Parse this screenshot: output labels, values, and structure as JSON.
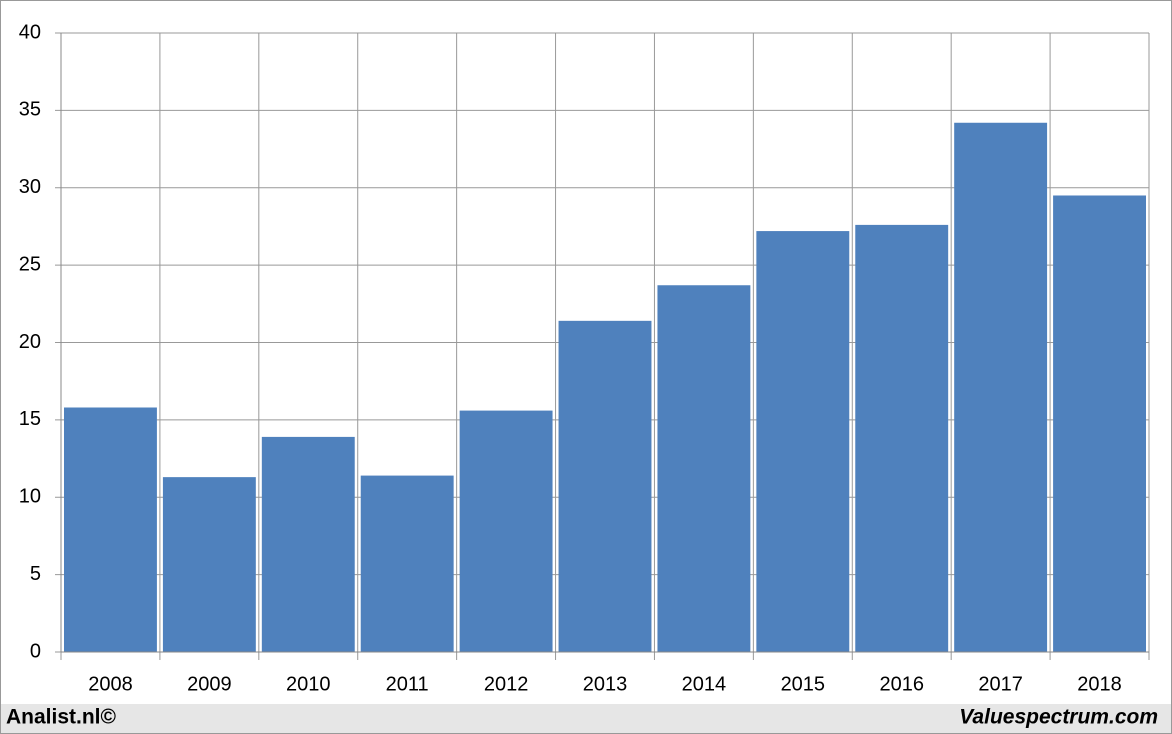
{
  "chart_data": {
    "type": "bar",
    "categories": [
      "2008",
      "2009",
      "2010",
      "2011",
      "2012",
      "2013",
      "2014",
      "2015",
      "2016",
      "2017",
      "2018"
    ],
    "values": [
      15.8,
      11.3,
      13.9,
      11.4,
      15.6,
      21.4,
      23.7,
      27.2,
      27.6,
      34.2,
      29.5
    ],
    "color": "#4f81bd",
    "ylim": [
      0,
      40
    ],
    "yticks": [
      0,
      5,
      10,
      15,
      20,
      25,
      30,
      35,
      40
    ],
    "grid": true
  },
  "footer": {
    "left": "Analist.nl©",
    "right": "Valuespectrum.com"
  }
}
